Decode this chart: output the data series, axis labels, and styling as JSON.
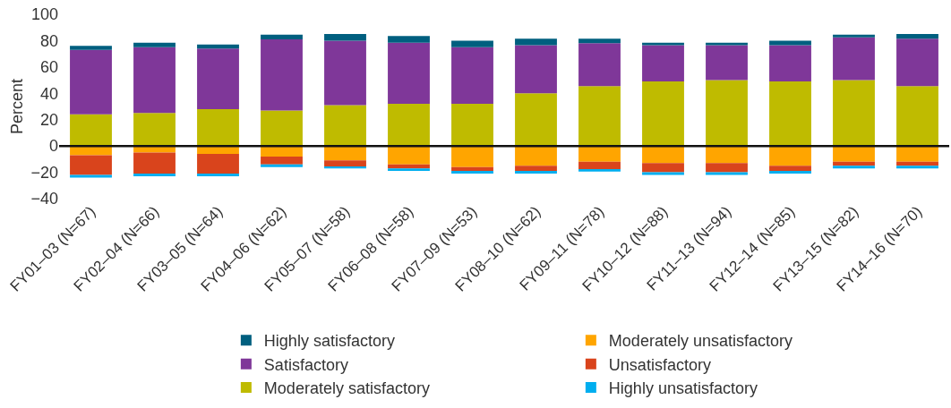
{
  "chart_data": {
    "type": "bar",
    "stacked": true,
    "ylabel": "Percent",
    "ylim": [
      -40,
      100
    ],
    "yticks": [
      -40,
      -20,
      0,
      20,
      40,
      60,
      80,
      100
    ],
    "grid": false,
    "legend": "bottom",
    "ref_lines": [
      {
        "axis": "y",
        "value": 0,
        "color": "#111111"
      }
    ],
    "categories": [
      "FY01–03 (N=67)",
      "FY02–04 (N=66)",
      "FY03–05 (N=64)",
      "FY04–06 (N=62)",
      "FY05–07 (N=58)",
      "FY06–08 (N=58)",
      "FY07–09 (N=53)",
      "FY08–10 (N=62)",
      "FY09–11 (N=78)",
      "FY10–12 (N=88)",
      "FY11–13 (N=94)",
      "FY12–14 (N=85)",
      "FY13–15 (N=82)",
      "FY14–16 (N=70)"
    ],
    "series": [
      {
        "name": "Moderately satisfactory",
        "color": "#bfbb00",
        "values": [
          24,
          25,
          28,
          27,
          31,
          32,
          32,
          40,
          45.5,
          49,
          50,
          49,
          50,
          45.5
        ]
      },
      {
        "name": "Satisfactory",
        "color": "#7f3799",
        "values": [
          49,
          50,
          46,
          54,
          49,
          46.5,
          43,
          36.5,
          32.5,
          27.5,
          26.5,
          27.5,
          32.5,
          36
        ]
      },
      {
        "name": "Highly satisfactory",
        "color": "#005f7f",
        "values": [
          3,
          3.5,
          3,
          3.5,
          5,
          5,
          5,
          5,
          3.5,
          2,
          2,
          3.5,
          2,
          3.5
        ]
      },
      {
        "name": "Moderately unsatisfactory",
        "color": "#ffa500",
        "values": [
          -7,
          -5,
          -6,
          -8,
          -11,
          -14,
          -16,
          -15,
          -12,
          -13,
          -13,
          -15,
          -12,
          -12
        ]
      },
      {
        "name": "Unsatisfactory",
        "color": "#d9441c",
        "values": [
          -15,
          -16,
          -15,
          -6,
          -4.5,
          -3,
          -3,
          -4,
          -5.5,
          -7,
          -7,
          -4,
          -3,
          -3
        ]
      },
      {
        "name": "Highly unsatisfactory",
        "color": "#00aeef",
        "values": [
          -2,
          -2,
          -2,
          -2,
          -1.6,
          -2,
          -2,
          -2,
          -2,
          -2,
          -2,
          -2,
          -2,
          -2
        ]
      }
    ]
  }
}
